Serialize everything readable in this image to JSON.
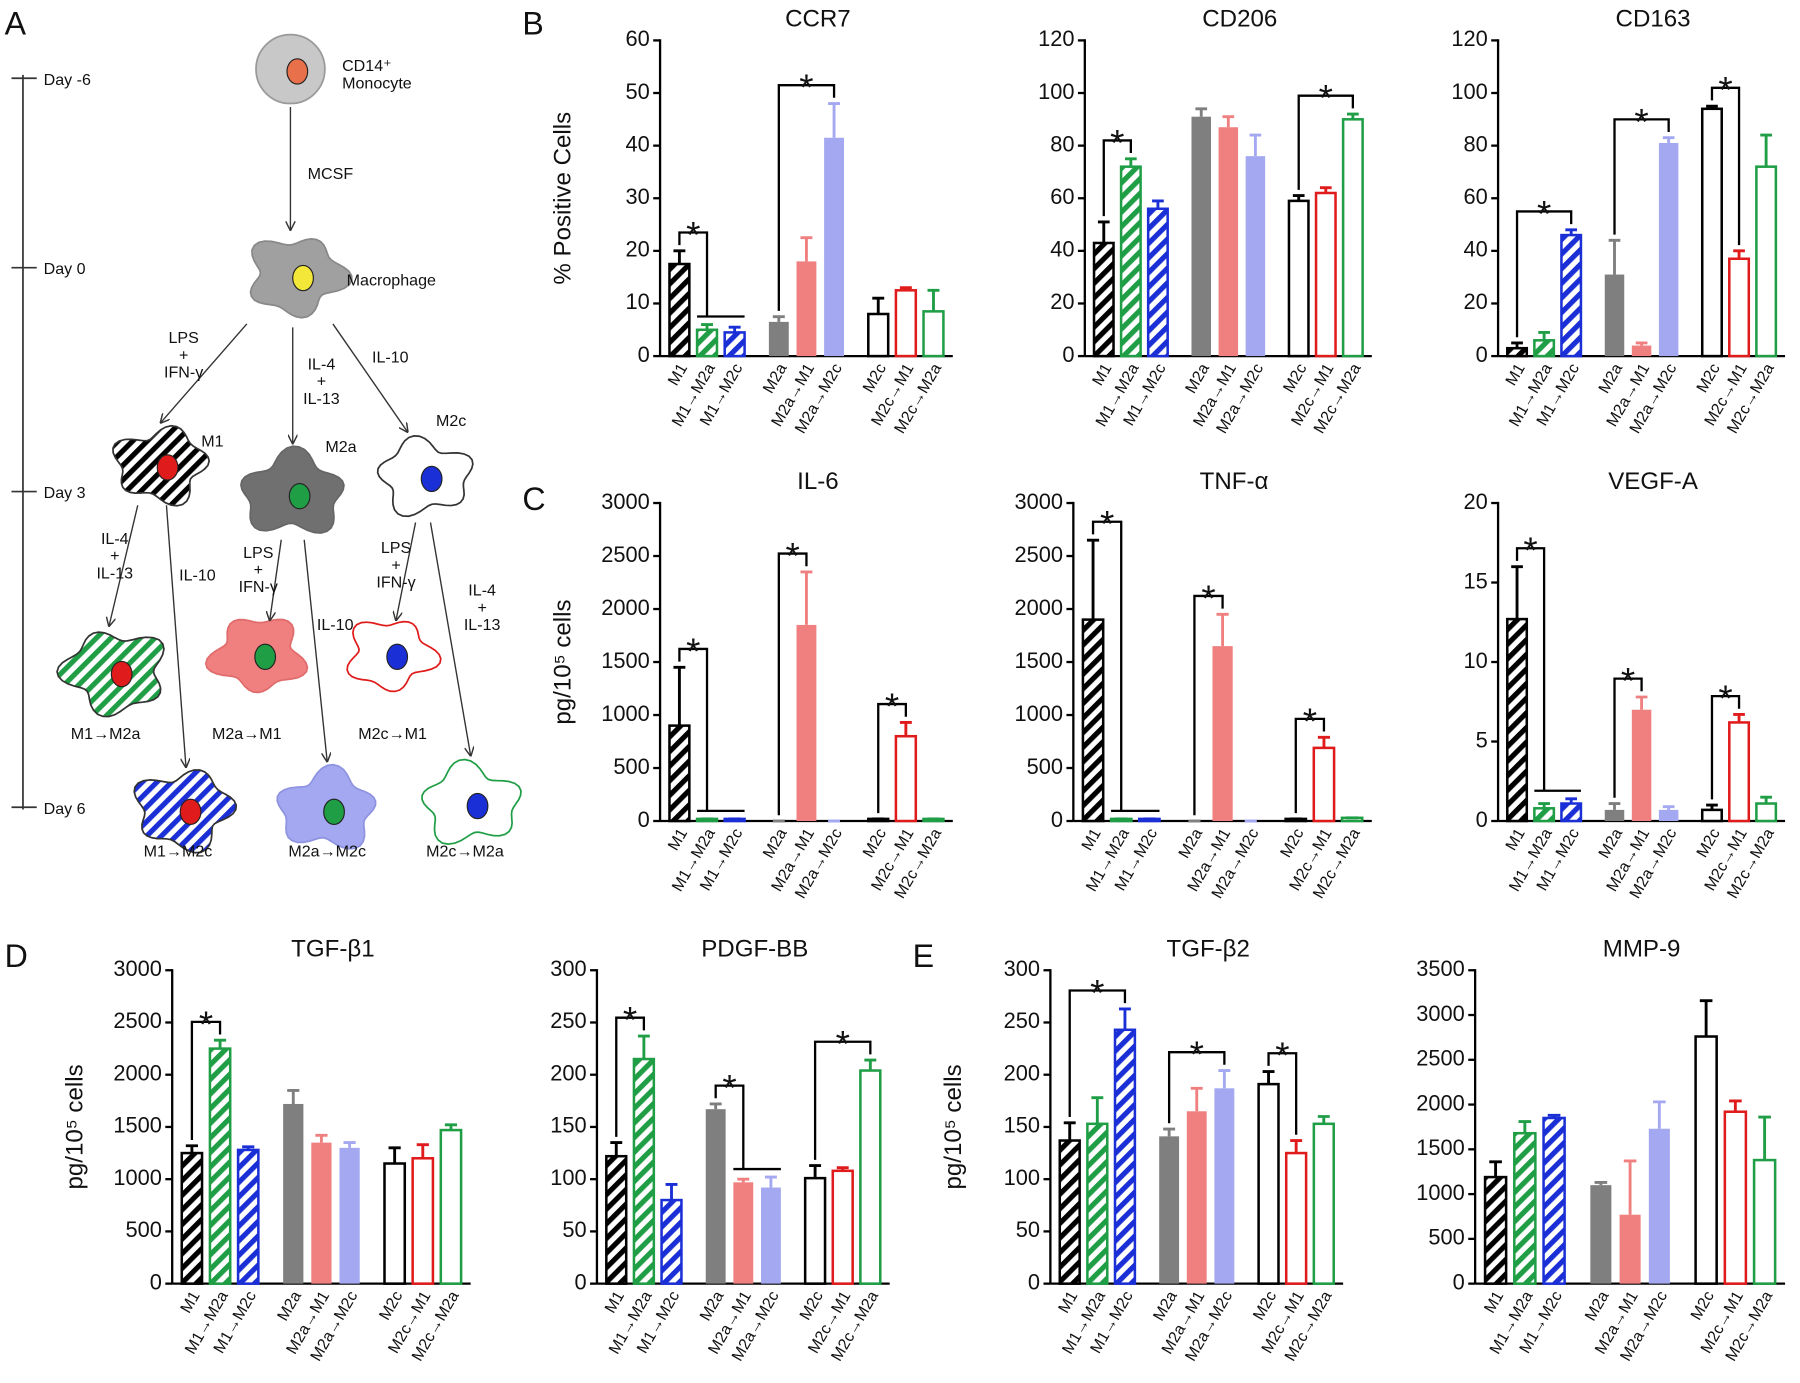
{
  "panel_labels": [
    "A",
    "B",
    "C",
    "D",
    "E"
  ],
  "bar_styles": [
    {
      "color": "#000000",
      "fill": "hatch"
    },
    {
      "color": "#1f9e46",
      "fill": "hatch"
    },
    {
      "color": "#1a2fd6",
      "fill": "hatch"
    },
    {
      "color": "#7f7f7f",
      "fill": "solid"
    },
    {
      "color": "#f08080",
      "fill": "solid"
    },
    {
      "color": "#a3a8f0",
      "fill": "solid"
    },
    {
      "color": "#000000",
      "fill": "outline"
    },
    {
      "color": "#e01b1b",
      "fill": "outline"
    },
    {
      "color": "#1f9e46",
      "fill": "outline"
    }
  ],
  "diagram": {
    "labels": [
      "Day -6",
      "Day 0",
      "Day 3",
      "Day 6",
      [
        "CD14⁺",
        "Monocyte"
      ],
      "MCSF",
      "Macrophage",
      [
        "LPS",
        "+",
        "IFN-γ"
      ],
      [
        "IL-4",
        "+",
        "IL-13"
      ],
      "IL-10",
      "M1",
      "M2a",
      "M2c",
      [
        "IL-4",
        "+",
        "IL-13"
      ],
      "IL-10",
      [
        "LPS",
        "+",
        "IFN-γ"
      ],
      "IL-10",
      [
        "LPS",
        "+",
        "IFN-γ"
      ],
      [
        "IL-4",
        "+",
        "IL-13"
      ],
      "M1→M2a",
      "M2a→M1",
      "M2c→M1",
      "M1→M2c",
      "M2a→M2c",
      "M2c→M2a"
    ]
  },
  "chart_data": [
    {
      "type": "bar",
      "title": "CCR7",
      "ylabel": "% Positive Cells",
      "categories": [
        "M1",
        "M1→M2a",
        "M1→M2c",
        "M2a",
        "M2a→M1",
        "M2a→M2c",
        "M2c",
        "M2c→M1",
        "M2c→M2a"
      ],
      "values": [
        17.5,
        5,
        4.5,
        6.5,
        18,
        41.5,
        8,
        12.5,
        8.5
      ],
      "errors": [
        2.5,
        1,
        1,
        1,
        4.5,
        6.5,
        3,
        0.5,
        4
      ],
      "ylim": [
        0,
        60
      ],
      "yticks": [
        0,
        10,
        20,
        30,
        40,
        50,
        60
      ],
      "annotations": [
        {
          "text": "*",
          "from": 0,
          "to": [
            1,
            2
          ]
        },
        {
          "text": "*",
          "from": 3,
          "to": 5
        }
      ]
    },
    {
      "type": "bar",
      "title": "CD206",
      "categories": [
        "M1",
        "M1→M2a",
        "M1→M2c",
        "M2a",
        "M2a→M1",
        "M2a→M2c",
        "M2c",
        "M2c→M1",
        "M2c→M2a"
      ],
      "values": [
        43,
        72,
        56,
        91,
        87,
        76,
        59,
        62,
        90
      ],
      "errors": [
        8,
        3,
        3,
        3,
        4,
        8,
        2,
        2,
        2
      ],
      "ylim": [
        0,
        120
      ],
      "yticks": [
        0,
        20,
        40,
        60,
        80,
        100,
        120
      ],
      "annotations": [
        {
          "text": "*",
          "from": 0,
          "to": 1
        },
        {
          "text": "*",
          "from": 6,
          "to": 8
        }
      ]
    },
    {
      "type": "bar",
      "title": "CD163",
      "categories": [
        "M1",
        "M1→M2a",
        "M1→M2c",
        "M2a",
        "M2a→M1",
        "M2a→M2c",
        "M2c",
        "M2c→M1",
        "M2c→M2a"
      ],
      "values": [
        3,
        6,
        46,
        31,
        4,
        81,
        94,
        37,
        72
      ],
      "errors": [
        2,
        3,
        2,
        13,
        1,
        2,
        1,
        3,
        12
      ],
      "ylim": [
        0,
        120
      ],
      "yticks": [
        0,
        20,
        40,
        60,
        80,
        100,
        120
      ],
      "annotations": [
        {
          "text": "*",
          "from": 0,
          "to": 2
        },
        {
          "text": "*",
          "from": 3,
          "to": 5
        },
        {
          "text": "*",
          "from": 6,
          "to": 7
        }
      ]
    },
    {
      "type": "bar",
      "title": "IL-6",
      "ylabel": "pg/10⁵ cells",
      "categories": [
        "M1",
        "M1→M2a",
        "M1→M2c",
        "M2a",
        "M2a→M1",
        "M2a→M2c",
        "M2c",
        "M2c→M1",
        "M2c→M2a"
      ],
      "values": [
        900,
        20,
        20,
        0,
        1850,
        0,
        20,
        800,
        20
      ],
      "errors": [
        550,
        0,
        0,
        0,
        500,
        0,
        0,
        130,
        0
      ],
      "ylim": [
        0,
        3000
      ],
      "yticks": [
        0,
        500,
        1000,
        1500,
        2000,
        2500,
        3000
      ],
      "annotations": [
        {
          "text": "*",
          "from": 0,
          "to": [
            1,
            2
          ]
        },
        {
          "text": "*",
          "from": 3,
          "to": 4
        },
        {
          "text": "*",
          "from": 6,
          "to": 7
        }
      ]
    },
    {
      "type": "bar",
      "title": "TNF-α",
      "categories": [
        "M1",
        "M1→M2a",
        "M1→M2c",
        "M2a",
        "M2a→M1",
        "M2a→M2c",
        "M2c",
        "M2c→M1",
        "M2c→M2a"
      ],
      "values": [
        1900,
        20,
        20,
        0,
        1650,
        0,
        20,
        690,
        30
      ],
      "errors": [
        750,
        0,
        0,
        0,
        300,
        0,
        0,
        100,
        0
      ],
      "ylim": [
        0,
        3000
      ],
      "yticks": [
        0,
        500,
        1000,
        1500,
        2000,
        2500,
        3000
      ],
      "annotations": [
        {
          "text": "*",
          "from": 0,
          "to": [
            1,
            2
          ]
        },
        {
          "text": "*",
          "from": 3,
          "to": 4
        },
        {
          "text": "*",
          "from": 6,
          "to": 7
        }
      ]
    },
    {
      "type": "bar",
      "title": "VEGF-A",
      "categories": [
        "M1",
        "M1→M2a",
        "M1→M2c",
        "M2a",
        "M2a→M1",
        "M2a→M2c",
        "M2c",
        "M2c→M1",
        "M2c→M2a"
      ],
      "values": [
        12.7,
        0.8,
        1.1,
        0.7,
        7,
        0.7,
        0.7,
        6.2,
        1.1
      ],
      "errors": [
        3.3,
        0.3,
        0.3,
        0.4,
        0.8,
        0.2,
        0.3,
        0.5,
        0.4
      ],
      "ylim": [
        0,
        20
      ],
      "yticks": [
        0,
        5,
        10,
        15,
        20
      ],
      "annotations": [
        {
          "text": "*",
          "from": 0,
          "to": [
            1,
            2
          ]
        },
        {
          "text": "*",
          "from": 3,
          "to": 4
        },
        {
          "text": "*",
          "from": 6,
          "to": 7
        }
      ]
    },
    {
      "type": "bar",
      "title": "TGF-β1",
      "ylabel": "pg/10⁵ cells",
      "categories": [
        "M1",
        "M1→M2a",
        "M1→M2c",
        "M2a",
        "M2a→M1",
        "M2a→M2c",
        "M2c",
        "M2c→M1",
        "M2c→M2a"
      ],
      "values": [
        1250,
        2250,
        1280,
        1720,
        1350,
        1300,
        1150,
        1200,
        1470
      ],
      "errors": [
        70,
        80,
        30,
        130,
        70,
        50,
        150,
        130,
        50
      ],
      "ylim": [
        0,
        3000
      ],
      "yticks": [
        0,
        500,
        1000,
        1500,
        2000,
        2500,
        3000
      ],
      "annotations": [
        {
          "text": "*",
          "from": 0,
          "to": 1
        }
      ]
    },
    {
      "type": "bar",
      "title": "PDGF-BB",
      "categories": [
        "M1",
        "M1→M2a",
        "M1→M2c",
        "M2a",
        "M2a→M1",
        "M2a→M2c",
        "M2c",
        "M2c→M1",
        "M2c→M2a"
      ],
      "values": [
        122,
        215,
        80,
        167,
        97,
        92,
        101,
        108,
        204
      ],
      "errors": [
        13,
        22,
        15,
        5,
        3,
        10,
        12,
        3,
        10
      ],
      "ylim": [
        0,
        300
      ],
      "yticks": [
        0,
        50,
        100,
        150,
        200,
        250,
        300
      ],
      "annotations": [
        {
          "text": "*",
          "from": 0,
          "to": 1
        },
        {
          "text": "*",
          "from": 3,
          "to": [
            4,
            5
          ]
        },
        {
          "text": "*",
          "from": 6,
          "to": 8
        }
      ]
    },
    {
      "type": "bar",
      "title": "TGF-β2",
      "ylabel": "pg/10⁵ cells",
      "categories": [
        "M1",
        "M1→M2a",
        "M1→M2c",
        "M2a",
        "M2a→M1",
        "M2a→M2c",
        "M2c",
        "M2c→M1",
        "M2c→M2a"
      ],
      "values": [
        137,
        153,
        243,
        141,
        165,
        187,
        191,
        125,
        153
      ],
      "errors": [
        17,
        25,
        20,
        7,
        22,
        17,
        12,
        12,
        7
      ],
      "ylim": [
        0,
        300
      ],
      "yticks": [
        0,
        50,
        100,
        150,
        200,
        250,
        300
      ],
      "annotations": [
        {
          "text": "*",
          "from": 0,
          "to": 2
        },
        {
          "text": "*",
          "from": 3,
          "to": 5
        },
        {
          "text": "*",
          "from": 6,
          "to": 7
        }
      ]
    },
    {
      "type": "bar",
      "title": "MMP-9",
      "categories": [
        "M1",
        "M1→M2a",
        "M1→M2c",
        "M2a",
        "M2a→M1",
        "M2a→M2c",
        "M2c",
        "M2c→M1",
        "M2c→M2a"
      ],
      "values": [
        1190,
        1680,
        1850,
        1100,
        770,
        1730,
        2760,
        1920,
        1380
      ],
      "errors": [
        170,
        130,
        30,
        30,
        600,
        300,
        400,
        120,
        480
      ],
      "ylim": [
        0,
        3500
      ],
      "yticks": [
        0,
        500,
        1000,
        1500,
        2000,
        2500,
        3000,
        3500
      ],
      "annotations": []
    }
  ]
}
